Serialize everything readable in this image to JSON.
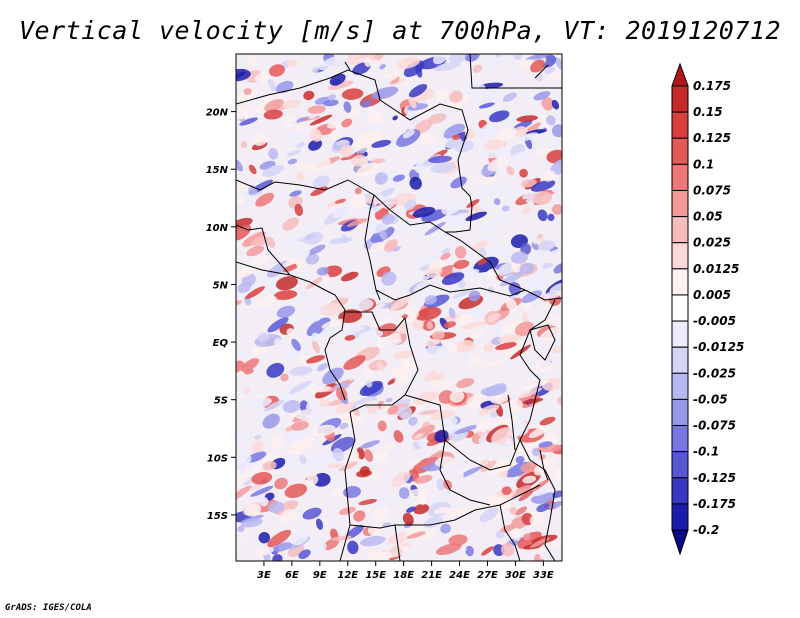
{
  "title": "Vertical velocity [m/s] at 700hPa, VT: 2019120712",
  "credit": "GrADS: IGES/COLA",
  "map": {
    "lon_range": [
      0,
      35
    ],
    "lat_range": [
      -19,
      25
    ],
    "lat_ticks": [
      {
        "value": 20,
        "label": "20N"
      },
      {
        "value": 15,
        "label": "15N"
      },
      {
        "value": 10,
        "label": "10N"
      },
      {
        "value": 5,
        "label": "5N"
      },
      {
        "value": 0,
        "label": "EQ"
      },
      {
        "value": -5,
        "label": "5S"
      },
      {
        "value": -10,
        "label": "10S"
      },
      {
        "value": -15,
        "label": "15S"
      }
    ],
    "lon_ticks": [
      {
        "value": 3,
        "label": "3E"
      },
      {
        "value": 6,
        "label": "6E"
      },
      {
        "value": 9,
        "label": "9E"
      },
      {
        "value": 12,
        "label": "12E"
      },
      {
        "value": 15,
        "label": "15E"
      },
      {
        "value": 18,
        "label": "18E"
      },
      {
        "value": 21,
        "label": "21E"
      },
      {
        "value": 24,
        "label": "24E"
      },
      {
        "value": 27,
        "label": "27E"
      },
      {
        "value": 30,
        "label": "30E"
      },
      {
        "value": 33,
        "label": "33E"
      }
    ]
  },
  "colorbar": {
    "labels": [
      "0.175",
      "0.15",
      "0.125",
      "0.1",
      "0.075",
      "0.05",
      "0.025",
      "0.0125",
      "0.005",
      "-0.005",
      "-0.0125",
      "-0.025",
      "-0.05",
      "-0.075",
      "-0.1",
      "-0.125",
      "-0.175",
      "-0.2"
    ],
    "colors": [
      "#b01818",
      "#c52b2b",
      "#d84040",
      "#e45858",
      "#ec7878",
      "#f29a9a",
      "#f7bcbc",
      "#fbd9d9",
      "#fdf0f0",
      "#ffffff",
      "#ececfb",
      "#d4d4f7",
      "#b8b8f1",
      "#9898ea",
      "#7878e0",
      "#5858d4",
      "#3838c4",
      "#1c1cac",
      "#0a0a8c"
    ]
  }
}
